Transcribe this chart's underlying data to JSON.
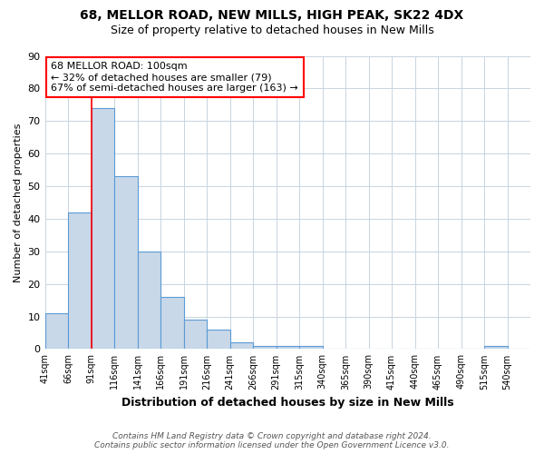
{
  "title_line1": "68, MELLOR ROAD, NEW MILLS, HIGH PEAK, SK22 4DX",
  "title_line2": "Size of property relative to detached houses in New Mills",
  "xlabel": "Distribution of detached houses by size in New Mills",
  "ylabel": "Number of detached properties",
  "bin_labels": [
    "41sqm",
    "66sqm",
    "91sqm",
    "116sqm",
    "141sqm",
    "166sqm",
    "191sqm",
    "216sqm",
    "241sqm",
    "266sqm",
    "291sqm",
    "315sqm",
    "340sqm",
    "365sqm",
    "390sqm",
    "415sqm",
    "440sqm",
    "465sqm",
    "490sqm",
    "515sqm",
    "540sqm"
  ],
  "bar_values": [
    11,
    42,
    74,
    53,
    30,
    16,
    9,
    6,
    2,
    1,
    1,
    1,
    0,
    0,
    0,
    0,
    0,
    0,
    0,
    1,
    0
  ],
  "bar_color": "#c8d8e8",
  "bar_edge_color": "#5b9bd5",
  "annotation_text": "68 MELLOR ROAD: 100sqm\n← 32% of detached houses are smaller (79)\n67% of semi-detached houses are larger (163) →",
  "annotation_box_color": "white",
  "annotation_box_edge": "red",
  "vline_x": 91,
  "vline_color": "red",
  "ylim": [
    0,
    90
  ],
  "yticks": [
    0,
    10,
    20,
    30,
    40,
    50,
    60,
    70,
    80,
    90
  ],
  "footnote": "Contains HM Land Registry data © Crown copyright and database right 2024.\nContains public sector information licensed under the Open Government Licence v3.0.",
  "background_color": "white",
  "grid_color": "#c8d4e0"
}
